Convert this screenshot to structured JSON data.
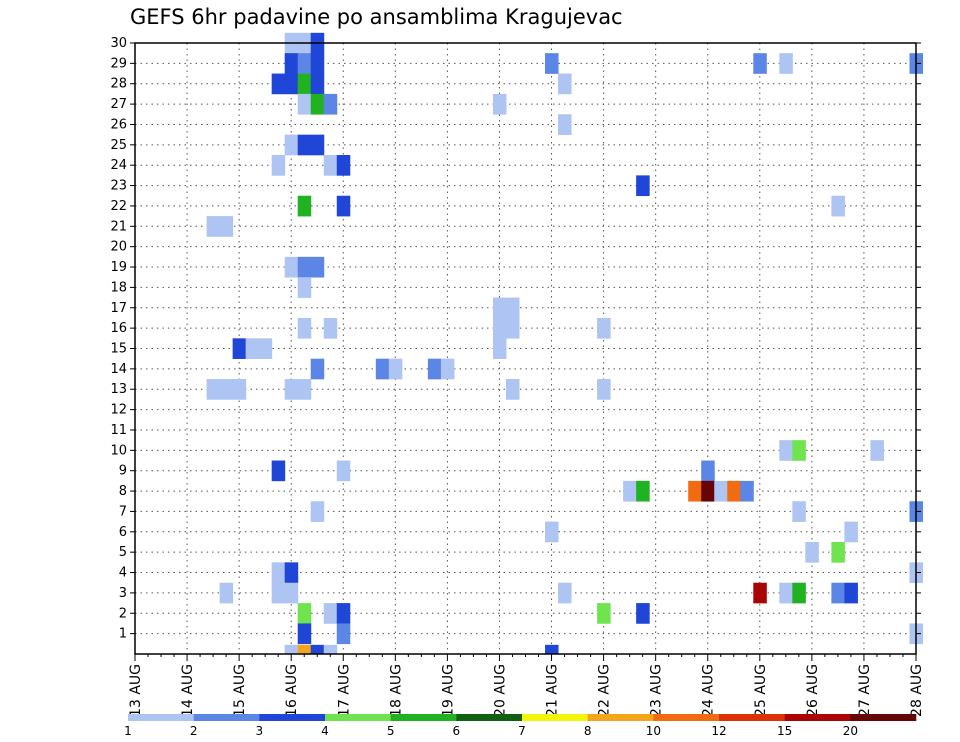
{
  "chart_data": {
    "type": "heatmap",
    "title": "GEFS 6hr padavine po ansamblima Kragujevac",
    "x_ticks": [
      "13 AUG",
      "14 AUG",
      "15 AUG",
      "16 AUG",
      "17 AUG",
      "18 AUG",
      "19 AUG",
      "20 AUG",
      "21 AUG",
      "22 AUG",
      "23 AUG",
      "24 AUG",
      "25 AUG",
      "26 AUG",
      "27 AUG",
      "28 AUG"
    ],
    "x_range": [
      "13 AUG 00",
      "28 AUG 00"
    ],
    "x_step_hours": 6,
    "y_ticks": [
      1,
      2,
      3,
      4,
      5,
      6,
      7,
      8,
      9,
      10,
      11,
      12,
      13,
      14,
      15,
      16,
      17,
      18,
      19,
      20,
      21,
      22,
      23,
      24,
      25,
      26,
      27,
      28,
      29,
      30
    ],
    "y_range": [
      0,
      30
    ],
    "grid": true,
    "legend": {
      "placement": "bottom",
      "labels": [
        "1",
        "2",
        "3",
        "4",
        "5",
        "6",
        "7",
        "8",
        "10",
        "12",
        "15",
        "20"
      ],
      "colors": [
        "#aec4f2",
        "#5b86e6",
        "#1f46d6",
        "#70e44e",
        "#21b221",
        "#116011",
        "#f4f40b",
        "#f5a51c",
        "#f26b10",
        "#dc3208",
        "#a90505",
        "#650505"
      ]
    },
    "cells": [
      {
        "day": 16.0,
        "member": 30,
        "bin": 1
      },
      {
        "day": 16.25,
        "member": 30,
        "bin": 1
      },
      {
        "day": 16.5,
        "member": 30,
        "bin": 3
      },
      {
        "day": 16.0,
        "member": 29,
        "bin": 3
      },
      {
        "day": 16.25,
        "member": 29,
        "bin": 2
      },
      {
        "day": 16.5,
        "member": 29,
        "bin": 3
      },
      {
        "day": 21.0,
        "member": 29,
        "bin": 2
      },
      {
        "day": 25.0,
        "member": 29,
        "bin": 2
      },
      {
        "day": 25.5,
        "member": 29,
        "bin": 1
      },
      {
        "day": 28.0,
        "member": 29,
        "bin": 2
      },
      {
        "day": 15.75,
        "member": 28,
        "bin": 3
      },
      {
        "day": 16.0,
        "member": 28,
        "bin": 3
      },
      {
        "day": 16.25,
        "member": 28,
        "bin": 5
      },
      {
        "day": 16.5,
        "member": 28,
        "bin": 3
      },
      {
        "day": 21.25,
        "member": 28,
        "bin": 1
      },
      {
        "day": 16.25,
        "member": 27,
        "bin": 1
      },
      {
        "day": 16.5,
        "member": 27,
        "bin": 5
      },
      {
        "day": 16.75,
        "member": 27,
        "bin": 2
      },
      {
        "day": 20.0,
        "member": 27,
        "bin": 1
      },
      {
        "day": 21.25,
        "member": 26,
        "bin": 1
      },
      {
        "day": 16.0,
        "member": 25,
        "bin": 1
      },
      {
        "day": 16.25,
        "member": 25,
        "bin": 3
      },
      {
        "day": 16.5,
        "member": 25,
        "bin": 3
      },
      {
        "day": 15.75,
        "member": 24,
        "bin": 1
      },
      {
        "day": 16.75,
        "member": 24,
        "bin": 1
      },
      {
        "day": 17.0,
        "member": 24,
        "bin": 3
      },
      {
        "day": 22.75,
        "member": 23,
        "bin": 3
      },
      {
        "day": 16.25,
        "member": 22,
        "bin": 5
      },
      {
        "day": 17.0,
        "member": 22,
        "bin": 3
      },
      {
        "day": 26.5,
        "member": 22,
        "bin": 1
      },
      {
        "day": 14.5,
        "member": 21,
        "bin": 1
      },
      {
        "day": 14.75,
        "member": 21,
        "bin": 1
      },
      {
        "day": 16.0,
        "member": 19,
        "bin": 1
      },
      {
        "day": 16.25,
        "member": 19,
        "bin": 2
      },
      {
        "day": 16.5,
        "member": 19,
        "bin": 2
      },
      {
        "day": 16.25,
        "member": 18,
        "bin": 1
      },
      {
        "day": 20.0,
        "member": 17,
        "bin": 1
      },
      {
        "day": 20.25,
        "member": 17,
        "bin": 1
      },
      {
        "day": 16.25,
        "member": 16,
        "bin": 1
      },
      {
        "day": 16.75,
        "member": 16,
        "bin": 1
      },
      {
        "day": 20.0,
        "member": 16,
        "bin": 1
      },
      {
        "day": 20.25,
        "member": 16,
        "bin": 1
      },
      {
        "day": 22.0,
        "member": 16,
        "bin": 1
      },
      {
        "day": 15.0,
        "member": 15,
        "bin": 3
      },
      {
        "day": 15.25,
        "member": 15,
        "bin": 1
      },
      {
        "day": 15.5,
        "member": 15,
        "bin": 1
      },
      {
        "day": 20.0,
        "member": 15,
        "bin": 1
      },
      {
        "day": 16.5,
        "member": 14,
        "bin": 2
      },
      {
        "day": 17.75,
        "member": 14,
        "bin": 2
      },
      {
        "day": 18.0,
        "member": 14,
        "bin": 1
      },
      {
        "day": 18.75,
        "member": 14,
        "bin": 2
      },
      {
        "day": 19.0,
        "member": 14,
        "bin": 1
      },
      {
        "day": 14.5,
        "member": 13,
        "bin": 1
      },
      {
        "day": 14.75,
        "member": 13,
        "bin": 1
      },
      {
        "day": 15.0,
        "member": 13,
        "bin": 1
      },
      {
        "day": 16.0,
        "member": 13,
        "bin": 1
      },
      {
        "day": 16.25,
        "member": 13,
        "bin": 1
      },
      {
        "day": 20.25,
        "member": 13,
        "bin": 1
      },
      {
        "day": 22.0,
        "member": 13,
        "bin": 1
      },
      {
        "day": 25.5,
        "member": 10,
        "bin": 1
      },
      {
        "day": 25.75,
        "member": 10,
        "bin": 4
      },
      {
        "day": 27.25,
        "member": 10,
        "bin": 1
      },
      {
        "day": 15.75,
        "member": 9,
        "bin": 3
      },
      {
        "day": 17.0,
        "member": 9,
        "bin": 1
      },
      {
        "day": 24.0,
        "member": 9,
        "bin": 2
      },
      {
        "day": 22.5,
        "member": 8,
        "bin": 1
      },
      {
        "day": 22.75,
        "member": 8,
        "bin": 5
      },
      {
        "day": 23.75,
        "member": 8,
        "bin": 10
      },
      {
        "day": 24.0,
        "member": 8,
        "bin": 20
      },
      {
        "day": 24.25,
        "member": 8,
        "bin": 1
      },
      {
        "day": 24.5,
        "member": 8,
        "bin": 10
      },
      {
        "day": 24.75,
        "member": 8,
        "bin": 2
      },
      {
        "day": 16.5,
        "member": 7,
        "bin": 1
      },
      {
        "day": 25.75,
        "member": 7,
        "bin": 1
      },
      {
        "day": 28.0,
        "member": 7,
        "bin": 2
      },
      {
        "day": 21.0,
        "member": 6,
        "bin": 1
      },
      {
        "day": 26.75,
        "member": 6,
        "bin": 1
      },
      {
        "day": 26.0,
        "member": 5,
        "bin": 1
      },
      {
        "day": 26.5,
        "member": 5,
        "bin": 4
      },
      {
        "day": 15.75,
        "member": 4,
        "bin": 1
      },
      {
        "day": 16.0,
        "member": 4,
        "bin": 3
      },
      {
        "day": 28.0,
        "member": 4,
        "bin": 1
      },
      {
        "day": 14.75,
        "member": 3,
        "bin": 1
      },
      {
        "day": 15.75,
        "member": 3,
        "bin": 1
      },
      {
        "day": 16.0,
        "member": 3,
        "bin": 1
      },
      {
        "day": 21.25,
        "member": 3,
        "bin": 1
      },
      {
        "day": 25.0,
        "member": 3,
        "bin": 15
      },
      {
        "day": 25.5,
        "member": 3,
        "bin": 1
      },
      {
        "day": 25.75,
        "member": 3,
        "bin": 5
      },
      {
        "day": 26.5,
        "member": 3,
        "bin": 2
      },
      {
        "day": 26.75,
        "member": 3,
        "bin": 3
      },
      {
        "day": 16.25,
        "member": 2,
        "bin": 4
      },
      {
        "day": 16.75,
        "member": 2,
        "bin": 1
      },
      {
        "day": 17.0,
        "member": 2,
        "bin": 3
      },
      {
        "day": 22.0,
        "member": 2,
        "bin": 4
      },
      {
        "day": 22.75,
        "member": 2,
        "bin": 3
      },
      {
        "day": 16.25,
        "member": 1,
        "bin": 3
      },
      {
        "day": 17.0,
        "member": 1,
        "bin": 2
      },
      {
        "day": 28.0,
        "member": 1,
        "bin": 1
      },
      {
        "day": 16.0,
        "member": 0,
        "bin": 1
      },
      {
        "day": 16.25,
        "member": 0,
        "bin": 8
      },
      {
        "day": 16.5,
        "member": 0,
        "bin": 3
      },
      {
        "day": 16.75,
        "member": 0,
        "bin": 1
      },
      {
        "day": 21.0,
        "member": 0,
        "bin": 3
      }
    ]
  }
}
